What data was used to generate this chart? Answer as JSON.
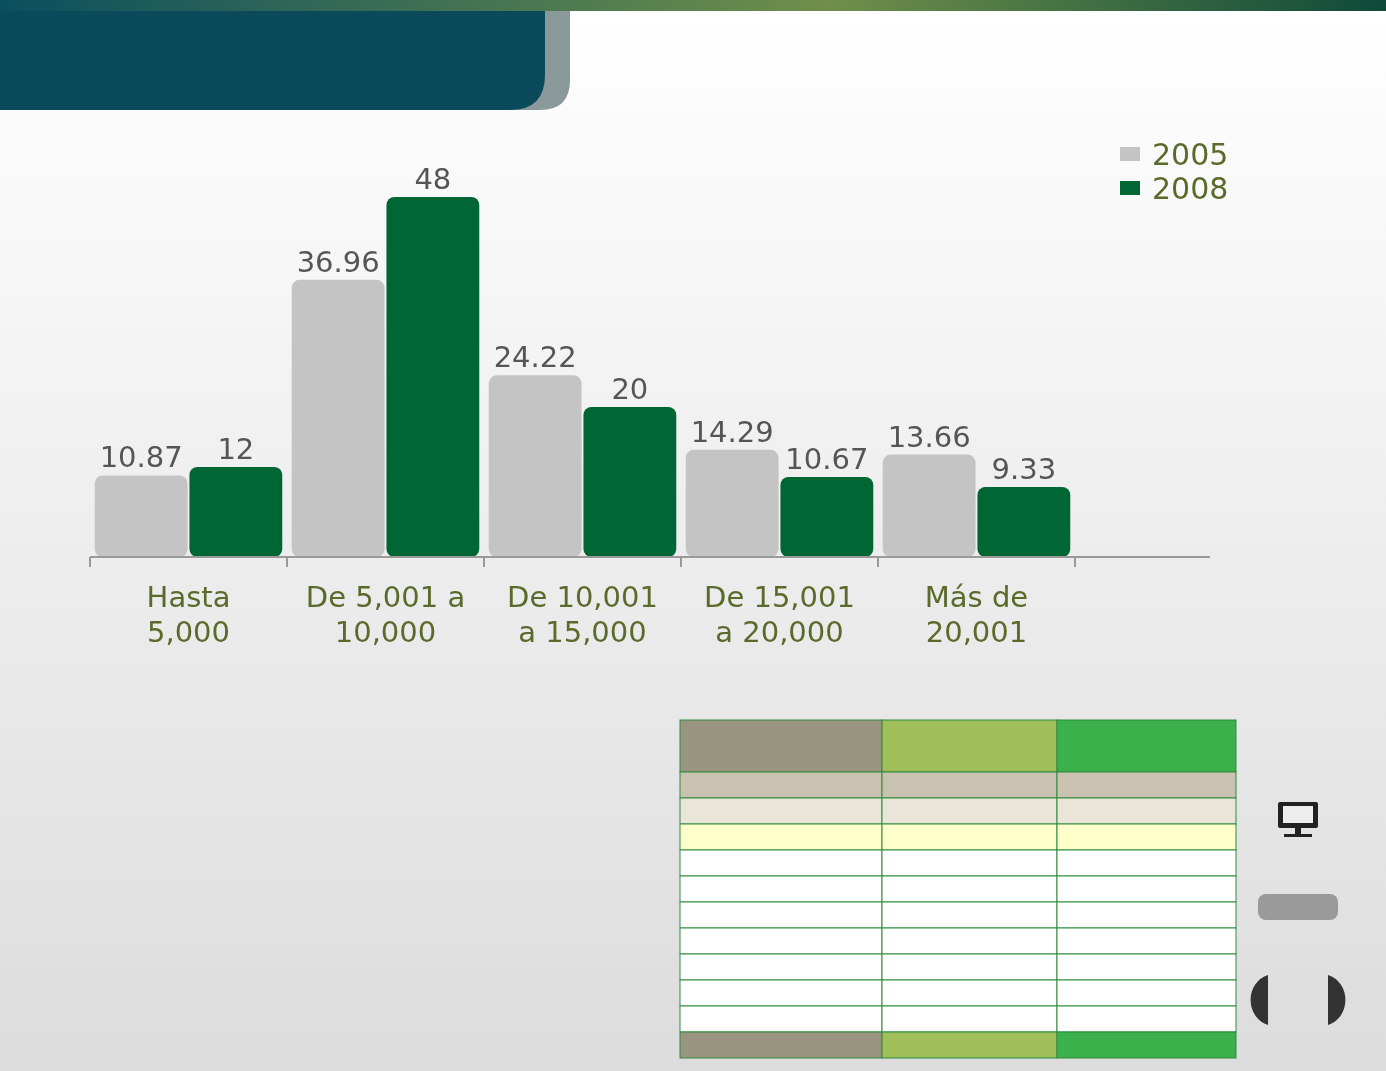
{
  "chart_data": {
    "type": "bar",
    "categories": [
      "Hasta 5,000",
      "De 5,001 a 10,000",
      "De 10,001 a 15,000",
      "De 15,001 a 20,000",
      "Más de 20,001"
    ],
    "series": [
      {
        "name": "2005",
        "color": "#c4c4c4",
        "values": [
          10.87,
          36.96,
          24.22,
          14.29,
          13.66
        ]
      },
      {
        "name": "2008",
        "color": "#006633",
        "values": [
          12,
          48,
          20,
          10.67,
          9.33
        ]
      }
    ],
    "data_labels": true,
    "legend": "top right"
  }
}
